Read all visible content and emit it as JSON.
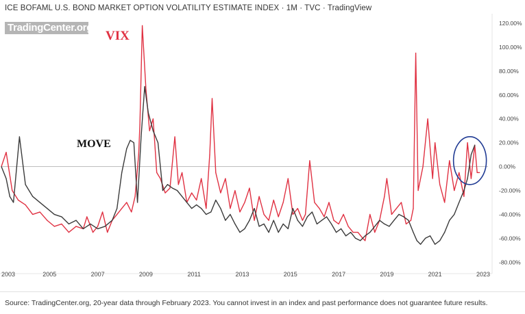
{
  "header": {
    "title": "ICE BOFAML U.S. BOND MARKET OPTION VOLATILITY ESTIMATE INDEX · 1M · TVC · TradingView",
    "watermark": "TradingCenter.org"
  },
  "footer": {
    "source": "Source: TradingCenter.org, 20-year data through February 2023. You cannot invest in an index and past performance does not guarantee future results."
  },
  "colors": {
    "vix": "#e03142",
    "move": "#3a3a3a",
    "circle": "#1f3a93",
    "zero_line": "#bdbdbd",
    "axis_text": "#444444"
  },
  "chart_data": {
    "type": "line",
    "title": "ICE BOFAML U.S. BOND MARKET OPTION VOLATILITY ESTIMATE INDEX · 1M · TVC · TradingView",
    "xlabel": "",
    "ylabel": "",
    "xlim": [
      2003,
      2023.2
    ],
    "ylim": [
      -85,
      128
    ],
    "x_ticks": [
      "2003",
      "2005",
      "2007",
      "2009",
      "2011",
      "2013",
      "2015",
      "2017",
      "2019",
      "2021",
      "2023"
    ],
    "y_ticks": [
      "120.00%",
      "100.00%",
      "80.00%",
      "60.00%",
      "40.00%",
      "20.00%",
      "0.00%",
      "-20.00%",
      "-40.00%",
      "-60.00%",
      "-80.00%"
    ],
    "y_tick_values": [
      120,
      100,
      80,
      60,
      40,
      20,
      0,
      -20,
      -40,
      -60,
      -80
    ],
    "grid": false,
    "legend": "inline labels",
    "annotations": [
      {
        "text": "VIX",
        "series": "VIX"
      },
      {
        "text": "MOVE",
        "series": "MOVE"
      }
    ],
    "highlight_circle": {
      "x_center": 2022.45,
      "y_center": 5
    },
    "series": [
      {
        "name": "VIX",
        "x": [
          2003.0,
          2003.2,
          2003.45,
          2003.7,
          2004.0,
          2004.3,
          2004.6,
          2004.9,
          2005.2,
          2005.5,
          2005.8,
          2006.1,
          2006.4,
          2006.55,
          2006.8,
          2007.0,
          2007.2,
          2007.4,
          2007.6,
          2007.8,
          2008.0,
          2008.2,
          2008.4,
          2008.55,
          2008.7,
          2008.75,
          2008.85,
          2009.0,
          2009.15,
          2009.3,
          2009.45,
          2009.6,
          2009.8,
          2010.0,
          2010.2,
          2010.35,
          2010.5,
          2010.7,
          2010.9,
          2011.1,
          2011.3,
          2011.5,
          2011.65,
          2011.75,
          2011.9,
          2012.1,
          2012.3,
          2012.5,
          2012.7,
          2012.9,
          2013.1,
          2013.3,
          2013.5,
          2013.7,
          2013.9,
          2014.1,
          2014.3,
          2014.5,
          2014.7,
          2014.9,
          2015.1,
          2015.3,
          2015.5,
          2015.62,
          2015.8,
          2016.0,
          2016.2,
          2016.4,
          2016.6,
          2016.8,
          2017.0,
          2017.2,
          2017.4,
          2017.6,
          2017.8,
          2018.0,
          2018.1,
          2018.3,
          2018.5,
          2018.7,
          2018.9,
          2019.0,
          2019.2,
          2019.4,
          2019.6,
          2019.8,
          2020.0,
          2020.1,
          2020.2,
          2020.3,
          2020.5,
          2020.7,
          2020.9,
          2021.0,
          2021.2,
          2021.4,
          2021.6,
          2021.8,
          2022.0,
          2022.2,
          2022.35,
          2022.5,
          2022.65,
          2022.75,
          2022.85
        ],
        "y": [
          0,
          12,
          -20,
          -28,
          -32,
          -40,
          -38,
          -45,
          -50,
          -48,
          -55,
          -50,
          -52,
          -42,
          -55,
          -50,
          -38,
          -55,
          -45,
          -40,
          -35,
          -30,
          -38,
          -25,
          10,
          35,
          118,
          65,
          30,
          40,
          -5,
          -10,
          -22,
          -18,
          25,
          -15,
          -5,
          -30,
          -22,
          -28,
          -10,
          -35,
          10,
          57,
          -5,
          -22,
          -10,
          -35,
          -20,
          -38,
          -30,
          -18,
          -45,
          -25,
          -40,
          -45,
          -28,
          -42,
          -30,
          -10,
          -40,
          -35,
          -45,
          -40,
          5,
          -30,
          -35,
          -42,
          -30,
          -45,
          -48,
          -40,
          -50,
          -55,
          -55,
          -60,
          -62,
          -40,
          -55,
          -45,
          -25,
          -10,
          -40,
          -35,
          -30,
          -48,
          -45,
          -35,
          95,
          -20,
          0,
          40,
          -10,
          20,
          -15,
          -30,
          5,
          -20,
          -5,
          -25,
          20,
          -10,
          18,
          -5,
          -5
        ]
      },
      {
        "name": "MOVE",
        "x": [
          2003.0,
          2003.2,
          2003.35,
          2003.5,
          2003.75,
          2004.0,
          2004.3,
          2004.6,
          2004.9,
          2005.2,
          2005.5,
          2005.8,
          2006.1,
          2006.4,
          2006.7,
          2007.0,
          2007.3,
          2007.6,
          2007.8,
          2008.0,
          2008.2,
          2008.35,
          2008.5,
          2008.65,
          2008.8,
          2008.95,
          2009.1,
          2009.3,
          2009.5,
          2009.7,
          2009.9,
          2010.1,
          2010.3,
          2010.5,
          2010.7,
          2010.9,
          2011.1,
          2011.3,
          2011.5,
          2011.7,
          2011.9,
          2012.1,
          2012.3,
          2012.5,
          2012.7,
          2012.9,
          2013.1,
          2013.3,
          2013.5,
          2013.7,
          2013.9,
          2014.1,
          2014.3,
          2014.5,
          2014.7,
          2014.9,
          2015.1,
          2015.3,
          2015.5,
          2015.7,
          2015.9,
          2016.1,
          2016.3,
          2016.5,
          2016.7,
          2016.9,
          2017.1,
          2017.3,
          2017.5,
          2017.7,
          2017.9,
          2018.1,
          2018.3,
          2018.5,
          2018.7,
          2018.9,
          2019.1,
          2019.3,
          2019.5,
          2019.7,
          2019.9,
          2020.1,
          2020.25,
          2020.4,
          2020.6,
          2020.8,
          2021.0,
          2021.2,
          2021.4,
          2021.6,
          2021.8,
          2022.0,
          2022.2,
          2022.35,
          2022.5,
          2022.65
        ],
        "y": [
          0,
          -10,
          -25,
          -30,
          25,
          -15,
          -25,
          -30,
          -35,
          -40,
          -42,
          -48,
          -45,
          -52,
          -48,
          -52,
          -50,
          -45,
          -35,
          -5,
          15,
          22,
          20,
          -30,
          25,
          67,
          45,
          30,
          20,
          -20,
          -15,
          -18,
          -20,
          -25,
          -30,
          -35,
          -32,
          -35,
          -40,
          -38,
          -28,
          -35,
          -45,
          -40,
          -48,
          -55,
          -52,
          -45,
          -35,
          -50,
          -48,
          -55,
          -45,
          -55,
          -48,
          -52,
          -35,
          -45,
          -50,
          -42,
          -38,
          -48,
          -45,
          -42,
          -48,
          -55,
          -52,
          -58,
          -55,
          -60,
          -62,
          -58,
          -55,
          -50,
          -45,
          -48,
          -50,
          -45,
          -40,
          -42,
          -45,
          -55,
          -62,
          -65,
          -60,
          -58,
          -65,
          -62,
          -55,
          -45,
          -40,
          -30,
          -20,
          -10,
          10,
          18
        ]
      }
    ]
  }
}
